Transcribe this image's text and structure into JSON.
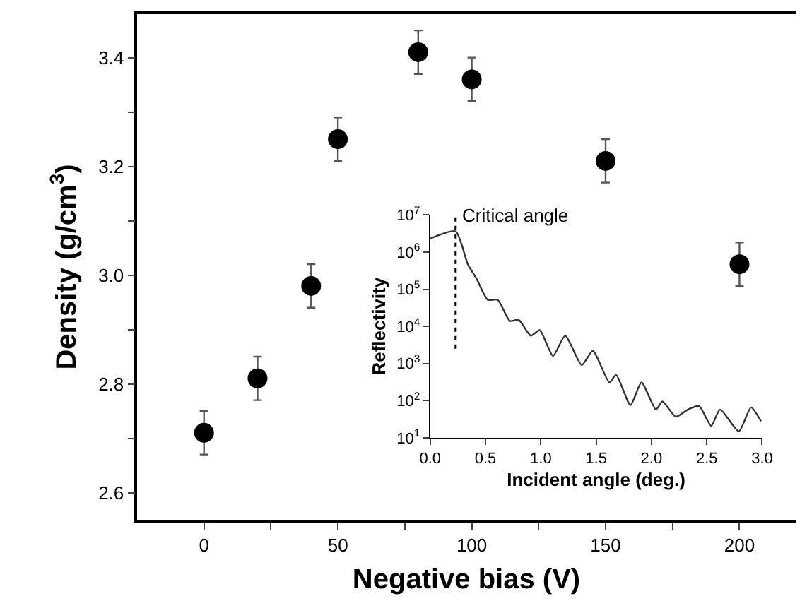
{
  "chart_data": [
    {
      "type": "scatter",
      "xlabel": "Negative bias (V)",
      "ylabel": "Density (g/cm$^{3}$)",
      "x": [
        0,
        20,
        40,
        50,
        80,
        100,
        150,
        200
      ],
      "series": [
        {
          "color": "#000000",
          "values": [
            2.71,
            2.81,
            2.98,
            3.25,
            3.41,
            3.36,
            3.21,
            3.02
          ],
          "errors": [
            0.04,
            0.04,
            0.04,
            0.04,
            0.04,
            0.04,
            0.04,
            0.04
          ]
        }
      ],
      "xlim": [
        -25,
        221
      ],
      "ylim": [
        2.55,
        3.48
      ],
      "xticks": [
        0,
        {
          "value": 25,
          "label": null
        },
        50,
        {
          "value": 75,
          "label": null
        },
        100,
        {
          "value": 125,
          "label": null
        },
        150,
        {
          "value": 175,
          "label": null
        },
        200
      ],
      "yticks": [
        2.6,
        {
          "value": 2.7,
          "label": null
        },
        "2.8",
        {
          "value": 2.9,
          "label": null
        },
        {
          "value": 3.0,
          "label": "3.0"
        },
        {
          "value": 3.1,
          "label": null
        },
        3.2,
        {
          "value": 3.3,
          "label": null
        },
        3.4
      ],
      "marker": "circle"
    },
    {
      "type": "line",
      "xlabel": "Incident angle (deg.)",
      "ylabel": "Reflectivity",
      "log": "y",
      "x": [
        0,
        0.23,
        0.34,
        0.42,
        0.52,
        0.61,
        0.72,
        0.8,
        0.91,
        0.99,
        1.11,
        1.22,
        1.37,
        1.47,
        1.62,
        1.68,
        1.81,
        1.91,
        2.04,
        2.1,
        2.22,
        2.33,
        2.43,
        2.54,
        2.62,
        2.79,
        2.9,
        2.99
      ],
      "series": [
        {
          "color": "#333333",
          "values": [
            2300000,
            3600000,
            470000,
            190000,
            52000,
            52000,
            14000,
            15000,
            5600,
            7900,
            1600,
            5600,
            910,
            2200,
            310,
            500,
            76,
            310,
            58,
            95,
            37,
            58,
            72,
            21,
            58,
            15,
            66,
            28
          ]
        }
      ],
      "xlim": [
        0,
        3.0
      ],
      "ylim": [
        10,
        10000000
      ],
      "xticks": [
        {
          "value": 0,
          "label": "0.0"
        },
        0.5,
        {
          "value": 1,
          "label": "1.0"
        },
        1.5,
        {
          "value": 2,
          "label": "2.0"
        },
        2.5,
        {
          "value": 3,
          "label": "3.0"
        }
      ],
      "yticks": [
        {
          "value": 10,
          "label": "10$^{1}$"
        },
        {
          "value": 100,
          "label": "10$^{2}$"
        },
        {
          "value": 1000,
          "label": "10$^{3}$"
        },
        {
          "value": 10000,
          "label": "10$^{4}$"
        },
        {
          "value": 100000,
          "label": "10$^{5}$"
        },
        {
          "value": 1000000,
          "label": "10$^{6}$"
        },
        {
          "value": 10000000,
          "label": "10$^{7}$"
        }
      ],
      "ref_lines": [
        {
          "axis": "x",
          "value": 0.23,
          "label": "Critical angle",
          "line_style": "dotted",
          "color": "#000000"
        }
      ],
      "marker": "none",
      "line_style": "solid"
    }
  ]
}
